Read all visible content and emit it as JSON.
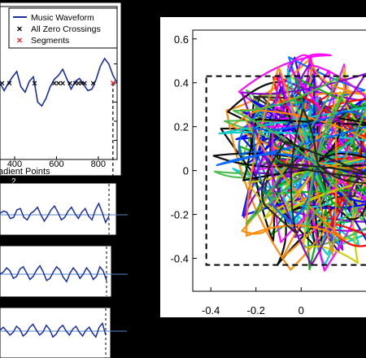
{
  "colors": {
    "waveform": "#1a2ea0",
    "zero_crossing": "#000000",
    "segment": "#e8202a",
    "baseline": "#4f86c6",
    "background": "#000000",
    "panel": "#ffffff",
    "dashed_box": "#000000"
  },
  "chart_data": [
    {
      "type": "line",
      "xlabel": "adient Points",
      "xlim": [
        330,
        890
      ],
      "ylim": [
        -1,
        1
      ],
      "xticks": [
        "400",
        "600",
        "800"
      ],
      "x_tick_values": [
        400,
        600,
        800
      ],
      "segment_boundary_x": 870,
      "legend": {
        "position": "top-right",
        "entries": [
          "Music Waveform",
          "All Zero Crossings",
          "Segments"
        ]
      },
      "series": [
        {
          "name": "Music Waveform",
          "x": [
            330,
            350,
            370,
            390,
            410,
            430,
            450,
            470,
            490,
            510,
            530,
            550,
            570,
            590,
            610,
            630,
            650,
            670,
            690,
            710,
            730,
            750,
            770,
            790,
            810,
            830,
            850,
            870,
            890
          ],
          "values": [
            0.0,
            -0.1,
            0.0,
            0.08,
            0.15,
            -0.05,
            -0.12,
            0.02,
            0.08,
            -0.25,
            -0.3,
            -0.2,
            -0.05,
            0.05,
            0.1,
            0.18,
            0.05,
            -0.08,
            0.02,
            0.06,
            -0.02,
            -0.1,
            -0.08,
            0.05,
            0.22,
            0.32,
            0.25,
            0.1,
            0.0
          ]
        },
        {
          "name": "All Zero Crossings",
          "x": [
            340,
            375,
            495,
            590,
            610,
            630,
            665,
            690,
            705,
            720,
            735,
            775
          ],
          "values": [
            0,
            0,
            0,
            0,
            0,
            0,
            0,
            0,
            0,
            0,
            0,
            0
          ]
        },
        {
          "name": "Segments",
          "x": [
            870
          ],
          "values": [
            0
          ]
        }
      ]
    },
    {
      "type": "line",
      "panel_label": "2",
      "series": [
        {
          "values": [
            0.05,
            0.15,
            0.1,
            -0.15,
            -0.1,
            0.2,
            0.25,
            -0.1,
            -0.2,
            0.05,
            0.15,
            0.3,
            0.0,
            -0.25,
            -0.05,
            0.2,
            0.35,
            0.1,
            -0.2,
            -0.1,
            0.15,
            0.3,
            0.05,
            -0.15,
            0.1,
            0.25,
            -0.05,
            -0.2,
            0.2,
            0.45,
            0.1,
            -0.3,
            -0.05
          ]
        }
      ]
    },
    {
      "type": "line",
      "series": [
        {
          "values": [
            0.0,
            0.1,
            0.3,
            0.15,
            -0.2,
            -0.1,
            0.25,
            0.35,
            0.05,
            -0.25,
            -0.1,
            0.2,
            0.4,
            0.1,
            -0.3,
            -0.2,
            0.1,
            0.35,
            0.2,
            -0.15,
            -0.35,
            0.05,
            0.3,
            0.1,
            -0.2,
            0.0,
            0.3,
            0.1,
            -0.25,
            -0.1,
            0.35,
            0.15,
            -0.3
          ]
        }
      ]
    },
    {
      "type": "line",
      "series": [
        {
          "values": [
            0.05,
            0.2,
            0.0,
            -0.2,
            -0.05,
            0.25,
            0.1,
            -0.25,
            -0.1,
            0.2,
            0.35,
            0.05,
            -0.2,
            -0.05,
            0.3,
            0.1,
            -0.3,
            -0.15,
            0.15,
            0.3,
            0.0,
            -0.2,
            0.1,
            0.25,
            -0.05,
            -0.25,
            0.05,
            0.2,
            -0.1,
            -0.3,
            0.2,
            0.4,
            -0.2
          ]
        }
      ]
    },
    {
      "type": "line",
      "xlim": [
        -0.48,
        0.1
      ],
      "ylim": [
        -0.55,
        0.64
      ],
      "xticks": [
        "-0.4",
        "-0.2",
        "0"
      ],
      "x_tick_values": [
        -0.4,
        -0.2,
        0
      ],
      "yticks": [
        "0.6",
        "0.4",
        "0.2",
        "0",
        "-0.2",
        "-0.4"
      ],
      "y_tick_values": [
        0.6,
        0.4,
        0.2,
        0,
        -0.2,
        -0.4
      ],
      "dashed_box": {
        "x_min": -0.42,
        "x_max": 0.1,
        "y_min": -0.43,
        "y_max": 0.43
      },
      "loop_colors": [
        "#0000ff",
        "#ff0000",
        "#00aa00",
        "#ff00ff",
        "#00cccc",
        "#cccc00",
        "#000000",
        "#8800cc",
        "#ff8800",
        "#0066ff",
        "#44bb44",
        "#222222"
      ],
      "loop_count": 48
    }
  ]
}
